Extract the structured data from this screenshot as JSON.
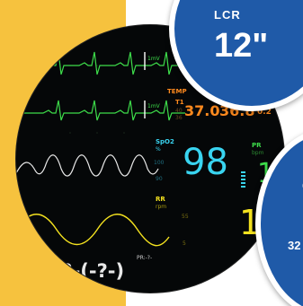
{
  "monitor": {
    "ecg1_scale": "1mV",
    "ecg2_scale": "1mV",
    "temp": {
      "label": "TEMP",
      "channel": "T1",
      "value1": "37.0",
      "value2": "36.8",
      "delta": "0.2",
      "sub1": "40",
      "sub2": "36"
    },
    "spo2": {
      "label": "SpO2",
      "unit": "%",
      "value": "98",
      "scale_hi": "100",
      "scale_lo": "90"
    },
    "pr": {
      "label": "PR",
      "unit": "bpm",
      "value": "1"
    },
    "rr": {
      "label": "RR",
      "unit": "rpm",
      "scale_hi": "55",
      "scale_lo": "5",
      "value": "1"
    },
    "pr_small": "PR:-?-",
    "nibp_value": "/-?-(-?-)"
  },
  "badges": {
    "top_label": "LCR",
    "top_size": "12\"",
    "bottom_label": "C",
    "bottom_value": "32"
  },
  "colors": {
    "background": "#f6c23e",
    "badge": "#1f5aa8",
    "ecg": "#3ddc4a",
    "temp": "#ff8a1e",
    "spo2": "#39d4f0",
    "rr": "#f4e21f",
    "pleth": "#e8e8e8"
  }
}
